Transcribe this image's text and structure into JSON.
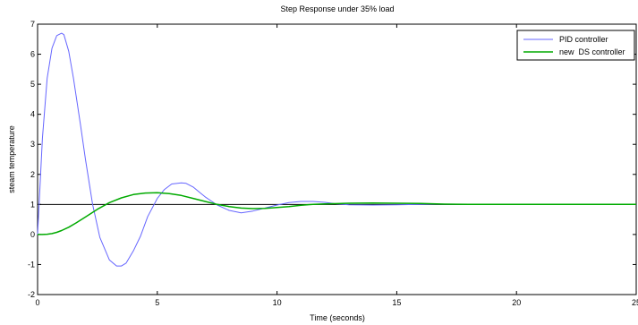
{
  "chart_data": {
    "type": "line",
    "title": "Step Response under 35% load",
    "xlabel": "Time (seconds)",
    "ylabel": "steam temperature",
    "xlim": [
      0,
      25
    ],
    "ylim": [
      -2,
      7
    ],
    "x_ticks": [
      "0",
      "5",
      "10",
      "15",
      "20",
      "25"
    ],
    "y_ticks": [
      "-2",
      "-1",
      "0",
      "1",
      "2",
      "3",
      "4",
      "5",
      "6",
      "7"
    ],
    "legend_position": "top-right",
    "reference_line": {
      "y": 1,
      "color": "#000000"
    },
    "series": [
      {
        "name": "PID controller",
        "color": "#6666ff",
        "x": [
          0,
          0.1,
          0.2,
          0.4,
          0.6,
          0.8,
          1.0,
          1.1,
          1.3,
          1.5,
          1.8,
          2.0,
          2.3,
          2.6,
          3.0,
          3.3,
          3.5,
          3.7,
          4.0,
          4.3,
          4.6,
          5.0,
          5.3,
          5.6,
          6.0,
          6.2,
          6.5,
          6.8,
          7.0,
          7.5,
          8.0,
          8.5,
          9.0,
          9.5,
          10.0,
          10.5,
          11.0,
          11.5,
          12.0,
          12.5,
          13.0,
          14.0,
          15.0,
          16.0,
          17.0,
          18.0,
          20.0,
          22.0,
          25.0
        ],
        "y": [
          0,
          1.6,
          3.2,
          5.2,
          6.2,
          6.62,
          6.7,
          6.65,
          6.1,
          5.2,
          3.6,
          2.5,
          1.0,
          -0.1,
          -0.85,
          -1.05,
          -1.05,
          -0.95,
          -0.55,
          -0.05,
          0.6,
          1.2,
          1.5,
          1.68,
          1.72,
          1.7,
          1.58,
          1.38,
          1.25,
          0.98,
          0.8,
          0.72,
          0.78,
          0.88,
          0.98,
          1.06,
          1.1,
          1.1,
          1.07,
          1.02,
          0.99,
          0.98,
          0.99,
          1.0,
          1.01,
          1.0,
          1.0,
          1.0,
          1.0
        ]
      },
      {
        "name": "new  DS controller",
        "color": "#00aa00",
        "x": [
          0,
          0.2,
          0.4,
          0.6,
          0.8,
          1.0,
          1.3,
          1.6,
          2.0,
          2.5,
          3.0,
          3.5,
          4.0,
          4.5,
          5.0,
          5.5,
          6.0,
          6.5,
          7.0,
          7.5,
          8.0,
          8.5,
          9.0,
          9.5,
          10.0,
          10.5,
          11.0,
          11.5,
          12.0,
          13.0,
          14.0,
          15.0,
          16.0,
          17.0,
          18.0,
          20.0,
          22.0,
          25.0
        ],
        "y": [
          0,
          0,
          0.01,
          0.03,
          0.07,
          0.13,
          0.24,
          0.38,
          0.58,
          0.84,
          1.06,
          1.22,
          1.33,
          1.38,
          1.39,
          1.36,
          1.3,
          1.2,
          1.1,
          1.0,
          0.93,
          0.88,
          0.86,
          0.87,
          0.9,
          0.93,
          0.97,
          1.0,
          1.02,
          1.04,
          1.05,
          1.04,
          1.03,
          1.01,
          1.0,
          1.0,
          1.0,
          1.0
        ]
      }
    ]
  }
}
